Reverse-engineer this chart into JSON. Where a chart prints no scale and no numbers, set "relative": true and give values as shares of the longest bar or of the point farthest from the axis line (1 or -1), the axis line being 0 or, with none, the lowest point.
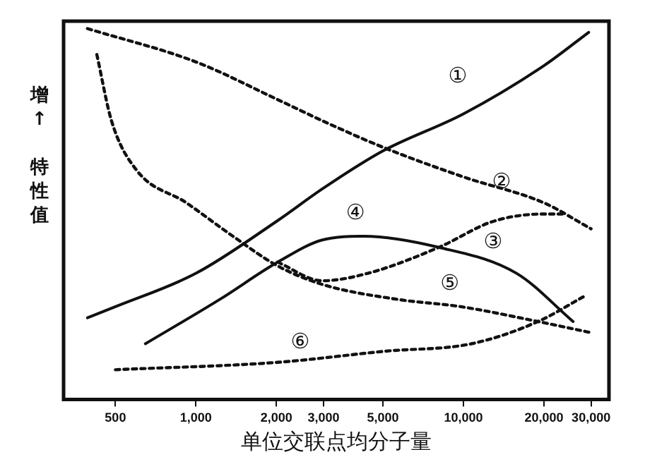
{
  "chart_data": {
    "type": "line",
    "xlabel": "单位交联点均分子量",
    "ylabel": "增↑特性值",
    "relative": true,
    "log": "x",
    "xlim": [
      320,
      35000
    ],
    "xticks": [
      500,
      {
        "value": 1000,
        "label": "1,000"
      },
      {
        "value": 2000,
        "label": "2,000"
      },
      {
        "value": 3000,
        "label": "3,000"
      },
      {
        "value": 5000,
        "label": "5,000"
      },
      {
        "value": 10000,
        "label": "10,000"
      },
      {
        "value": 20000,
        "label": "20,000"
      },
      {
        "value": 30000,
        "label": "30,000"
      }
    ],
    "grid": false,
    "legend": false,
    "marker": "none",
    "series": [
      {
        "name": "①",
        "color": "#111111",
        "line_style": "solid",
        "x": [
          393,
          500,
          1000,
          2000,
          3000,
          5000,
          10000,
          20000,
          29400
        ],
        "values": [
          0.22,
          0.25,
          0.34,
          0.48,
          0.57,
          0.67,
          0.77,
          0.9,
          0.99
        ]
      },
      {
        "name": "②",
        "color": "#111111",
        "line_style": "dotted",
        "x": [
          393,
          1000,
          2000,
          3000,
          5000,
          10000,
          20000,
          30000
        ],
        "values": [
          1.0,
          0.91,
          0.81,
          0.75,
          0.68,
          0.6,
          0.53,
          0.46
        ]
      },
      {
        "name": "③",
        "color": "#111111",
        "line_style": "dotted",
        "x": [
          2020,
          2970,
          4390,
          8090,
          12900,
          20000,
          23400
        ],
        "values": [
          0.37,
          0.32,
          0.34,
          0.41,
          0.48,
          0.5,
          0.5
        ]
      },
      {
        "name": "④",
        "color": "#111111",
        "line_style": "solid",
        "x": [
          647,
          1230,
          2020,
          2970,
          4250,
          8090,
          15800,
          25700
        ],
        "values": [
          0.15,
          0.27,
          0.37,
          0.43,
          0.44,
          0.41,
          0.34,
          0.21
        ]
      },
      {
        "name": "⑤",
        "color": "#111111",
        "line_style": "dotted",
        "x": [
          426,
          484,
          597,
          922,
          1375,
          2020,
          2970,
          5640,
          9800,
          19000,
          30000
        ],
        "values": [
          0.93,
          0.75,
          0.62,
          0.53,
          0.44,
          0.36,
          0.31,
          0.27,
          0.25,
          0.21,
          0.18
        ]
      },
      {
        "name": "⑥",
        "color": "#111111",
        "line_style": "dotted",
        "x": [
          500,
          2020,
          5100,
          10700,
          19000,
          28600
        ],
        "values": [
          0.08,
          0.1,
          0.13,
          0.15,
          0.21,
          0.28
        ]
      }
    ]
  }
}
